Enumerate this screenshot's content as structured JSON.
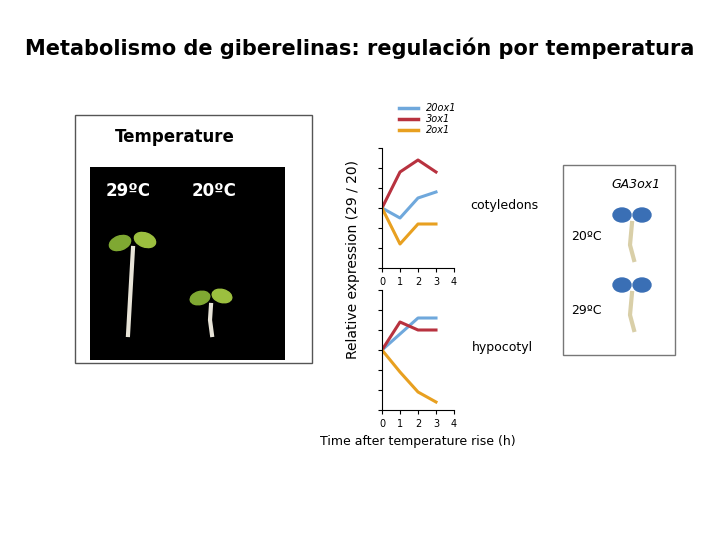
{
  "title": "Metabolismo de giberelinas: regulación por temperatura",
  "photo_panel": {
    "title": "Temperature",
    "labels": [
      "29ºC",
      "20ºC"
    ]
  },
  "stain_panel": {
    "title": "GA3ox1",
    "labels": [
      "20ºC",
      "29ºC"
    ]
  },
  "y_label": "Relative expression (29 / 20)",
  "chart_data": [
    {
      "type": "line",
      "annotation": "cotyledons",
      "x": [
        0,
        1,
        2,
        3
      ],
      "xlim": [
        0,
        4
      ],
      "xticks": [
        0,
        1,
        2,
        3,
        4
      ],
      "ylim": [
        0,
        3
      ],
      "yticks": [
        0,
        0.5,
        1,
        1.5,
        2,
        2.5,
        3
      ],
      "tick_labels": "x",
      "legend": "upper left",
      "series": [
        {
          "name": "20ox1",
          "color": "#6fa8dc",
          "values": [
            1.5,
            1.25,
            1.75,
            1.9
          ]
        },
        {
          "name": "3ox1",
          "color": "#b8323f",
          "values": [
            1.5,
            2.4,
            2.7,
            2.4
          ]
        },
        {
          "name": "2ox1",
          "color": "#e8a020",
          "values": [
            1.5,
            0.6,
            1.1,
            1.1
          ]
        }
      ]
    },
    {
      "type": "line",
      "annotation": "hypocotyl",
      "x_label": "Time after temperature rise (h)",
      "x": [
        0,
        1,
        2,
        3
      ],
      "xlim": [
        0,
        4
      ],
      "xticks": [
        0,
        1,
        2,
        3,
        4
      ],
      "ylim": [
        0,
        3
      ],
      "yticks": [
        0,
        0.5,
        1,
        1.5,
        2,
        2.5,
        3
      ],
      "tick_labels": "x",
      "series": [
        {
          "name": "20ox1",
          "color": "#6fa8dc",
          "values": [
            1.5,
            1.9,
            2.3,
            2.3
          ]
        },
        {
          "name": "3ox1",
          "color": "#b8323f",
          "values": [
            1.5,
            2.2,
            2.0,
            2.0
          ]
        },
        {
          "name": "2ox1",
          "color": "#e8a020",
          "values": [
            1.5,
            0.95,
            0.45,
            0.2
          ]
        }
      ]
    }
  ]
}
